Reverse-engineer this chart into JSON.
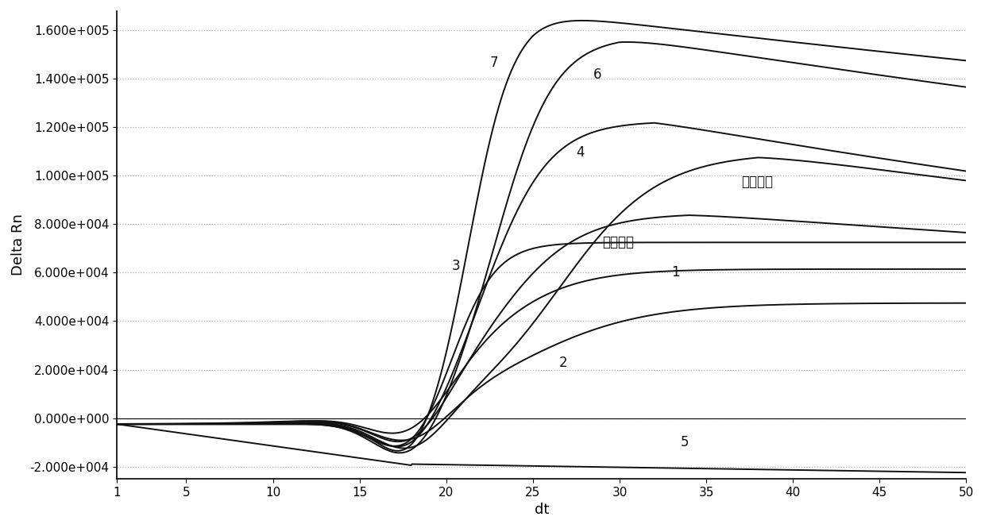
{
  "xlabel": "dt",
  "ylabel": "Delta Rn",
  "xlim": [
    1,
    50
  ],
  "ylim": [
    -25000,
    168000
  ],
  "xticks": [
    1,
    5,
    10,
    15,
    20,
    25,
    30,
    35,
    40,
    45,
    50
  ],
  "yticks": [
    -20000,
    0,
    20000,
    40000,
    60000,
    80000,
    100000,
    120000,
    140000,
    160000
  ],
  "ytick_labels": [
    "-2.000e+004",
    "0.000e+000",
    "2.000e+004",
    "4.000e+004",
    "6.000e+004",
    "8.000e+004",
    "1.000e+005",
    "1.200e+005",
    "1.400e+005",
    "1.600e+005"
  ],
  "grid_color": "#aaaaaa",
  "line_color": "#111111",
  "background_color": "#ffffff",
  "label_7": [
    22.5,
    145000
  ],
  "label_6": [
    28.5,
    140000
  ],
  "label_4": [
    27.5,
    108000
  ],
  "label_3": [
    20.3,
    61000
  ],
  "label_1": [
    33,
    58500
  ],
  "label_2": [
    26.5,
    21000
  ],
  "label_5": [
    33.5,
    -11500
  ],
  "label_yin": [
    37,
    96000
  ],
  "label_yang": [
    29,
    71000
  ],
  "font_size_axis_label": 13,
  "font_size_tick": 11,
  "font_size_annotation": 12
}
